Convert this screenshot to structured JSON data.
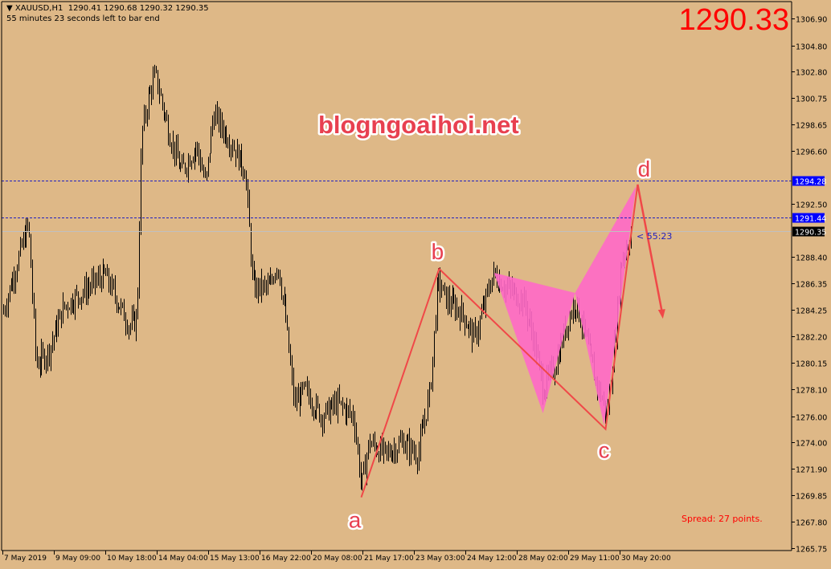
{
  "header": {
    "symbol": "XAUUSD,H1",
    "ohlc": "1290.41 1290.68 1290.32 1290.35",
    "countdown": "55 minutes 23 seconds left to bar end"
  },
  "big_price": "1290.33",
  "spread_text": "Spread: 27 points.",
  "timer_text": "< 55:23",
  "watermark": "blogngoaihoi.net",
  "colors": {
    "background": "#deb887",
    "bars": "#000000",
    "pattern_fill": "#ff69c8",
    "pattern_lines": "#f04848",
    "levels": "#2020c0",
    "label_bg": "#0000ff"
  },
  "chart_data": {
    "type": "ohlc-bar",
    "symbol": "XAUUSD",
    "timeframe": "H1",
    "ylim": [
      1265.75,
      1306.9
    ],
    "price_ticks": [
      "1306.90",
      "1304.80",
      "1302.80",
      "1300.75",
      "1298.65",
      "1296.60",
      "1292.50",
      "1288.40",
      "1286.35",
      "1284.25",
      "1282.20",
      "1280.15",
      "1278.10",
      "1276.00",
      "1274.00",
      "1271.90",
      "1269.85",
      "1267.80",
      "1265.75"
    ],
    "time_ticks": [
      "7 May 2019",
      "9 May 09:00",
      "10 May 18:00",
      "14 May 04:00",
      "15 May 13:00",
      "16 May 22:00",
      "20 May 08:00",
      "21 May 17:00",
      "23 May 03:00",
      "24 May 12:00",
      "28 May 02:00",
      "29 May 11:00",
      "30 May 20:00"
    ],
    "approx_price_path": [
      [
        "8 May 00:00",
        1284
      ],
      [
        "8 May 17:00",
        1291
      ],
      [
        "8 May 22:00",
        1280
      ],
      [
        "9 May 06:00",
        1281
      ],
      [
        "9 May 16:00",
        1284.5
      ],
      [
        "10 May 19:00",
        1287
      ],
      [
        "13 May 11:00",
        1283
      ],
      [
        "13 May 16:00",
        1283.5
      ],
      [
        "13 May 19:00",
        1298
      ],
      [
        "14 May 00:00",
        1301
      ],
      [
        "14 May 04:00",
        1302.5
      ],
      [
        "14 May 13:00",
        1298
      ],
      [
        "14 May 21:00",
        1295
      ],
      [
        "15 May 07:00",
        1297
      ],
      [
        "15 May 13:00",
        1294
      ],
      [
        "15 May 18:00",
        1299.5
      ],
      [
        "16 May 07:00",
        1297
      ],
      [
        "16 May 15:00",
        1295
      ],
      [
        "16 May 20:00",
        1286
      ],
      [
        "17 May 07:00",
        1286
      ],
      [
        "17 May 12:00",
        1288
      ],
      [
        "17 May 17:00",
        1284
      ],
      [
        "17 May 23:00",
        1277
      ],
      [
        "20 May 06:00",
        1278
      ],
      [
        "20 May 17:00",
        1276
      ],
      [
        "21 May 03:00",
        1277
      ],
      [
        "21 May 14:00",
        1276
      ],
      [
        "21 May 19:00",
        1270.5
      ],
      [
        "22 May 00:00",
        1274
      ],
      [
        "22 May 11:00",
        1273
      ],
      [
        "22 May 22:00",
        1274
      ],
      [
        "23 May 08:00",
        1273
      ],
      [
        "23 May 16:00",
        1278
      ],
      [
        "23 May 21:00",
        1286.5
      ],
      [
        "24 May 03:00",
        1285
      ],
      [
        "24 May 13:00",
        1284
      ],
      [
        "24 May 21:00",
        1282
      ],
      [
        "27 May 02:00",
        1284
      ],
      [
        "27 May 09:00",
        1287
      ],
      [
        "27 May 18:00",
        1286
      ],
      [
        "28 May 05:00",
        1285
      ],
      [
        "28 May 12:00",
        1282
      ],
      [
        "28 May 18:00",
        1278
      ],
      [
        "29 May 02:00",
        1280
      ],
      [
        "29 May 09:00",
        1283
      ],
      [
        "29 May 15:00",
        1285
      ],
      [
        "29 May 20:00",
        1283
      ],
      [
        "30 May 04:00",
        1279
      ],
      [
        "30 May 12:00",
        1276
      ],
      [
        "30 May 17:00",
        1282
      ],
      [
        "30 May 21:00",
        1288
      ],
      [
        "31 May 04:00",
        1290.35
      ]
    ],
    "levels": [
      {
        "price": 1294.28,
        "label": "1294.28",
        "style": "dashed"
      },
      {
        "price": 1291.44,
        "label": "1291.44",
        "style": "dashed"
      },
      {
        "price": 1290.35,
        "label": "1290.35",
        "style": "bid"
      }
    ],
    "wave_points": [
      {
        "label": "a",
        "time": "21 May 19:00",
        "price": 1269.7
      },
      {
        "label": "b",
        "time": "23 May 22:00",
        "price": 1287.45
      },
      {
        "label": "c",
        "time": "30 May 11:00",
        "price": 1275.0
      },
      {
        "label": "d",
        "time": "31 May 08:00",
        "price": 1294.0
      }
    ],
    "projection_arrow": {
      "from": {
        "time": "31 May 08:00",
        "price": 1294.0
      },
      "to": {
        "time": "1 Jun 00:00",
        "price": 1283.7
      }
    },
    "harmonic_pattern": [
      {
        "time": "27 May 10:00",
        "price": 1287.14
      },
      {
        "time": "28 May 18:00",
        "price": 1276.23
      },
      {
        "time": "29 May 15:00",
        "price": 1285.58
      },
      {
        "time": "30 May 10:00",
        "price": 1275.3
      },
      {
        "time": "31 May 07:00",
        "price": 1293.87
      }
    ]
  }
}
